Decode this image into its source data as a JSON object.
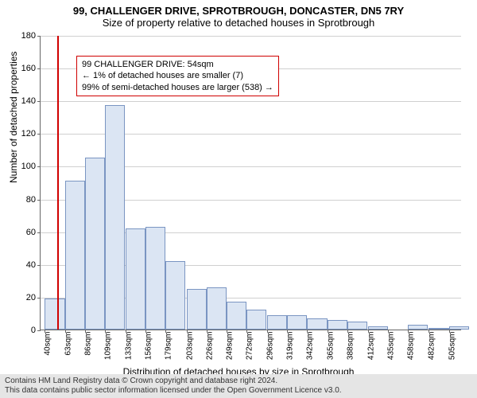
{
  "title": {
    "line1": "99, CHALLENGER DRIVE, SPROTBROUGH, DONCASTER, DN5 7RY",
    "line2": "Size of property relative to detached houses in Sprotbrough",
    "fontsize": 13,
    "color": "#000000"
  },
  "chart": {
    "type": "histogram",
    "background_color": "#ffffff",
    "grid_color": "#d0d0d0",
    "axis_color": "#666666",
    "bar_fill": "#dbe5f3",
    "bar_border": "#7a95c2",
    "marker_color": "#d00000",
    "marker_value": 54,
    "ylabel": "Number of detached properties",
    "xlabel": "Distribution of detached houses by size in Sprotbrough",
    "label_fontsize": 12,
    "tick_fontsize": 11,
    "xlim": [
      35,
      520
    ],
    "ylim": [
      0,
      180
    ],
    "ytick_step": 20,
    "yticks": [
      0,
      20,
      40,
      60,
      80,
      100,
      120,
      140,
      160,
      180
    ],
    "xticks": [
      40,
      63,
      86,
      109,
      133,
      156,
      179,
      203,
      226,
      249,
      272,
      296,
      319,
      342,
      365,
      388,
      412,
      435,
      458,
      482,
      505
    ],
    "xtick_suffix": "sqm",
    "bin_width": 23,
    "values": [
      19,
      91,
      105,
      137,
      62,
      63,
      42,
      25,
      26,
      17,
      12,
      9,
      9,
      7,
      6,
      5,
      2,
      0,
      3,
      1,
      2
    ]
  },
  "annotation": {
    "line1": "99 CHALLENGER DRIVE: 54sqm",
    "line2": "← 1% of detached houses are smaller (7)",
    "line3": "99% of semi-detached houses are larger (538) →",
    "border_color": "#d00000",
    "fontsize": 11
  },
  "license": {
    "line1": "Contains HM Land Registry data © Crown copyright and database right 2024.",
    "line2": "This data contains public sector information licensed under the Open Government Licence v3.0.",
    "background": "#e5e5e5",
    "fontsize": 10
  }
}
